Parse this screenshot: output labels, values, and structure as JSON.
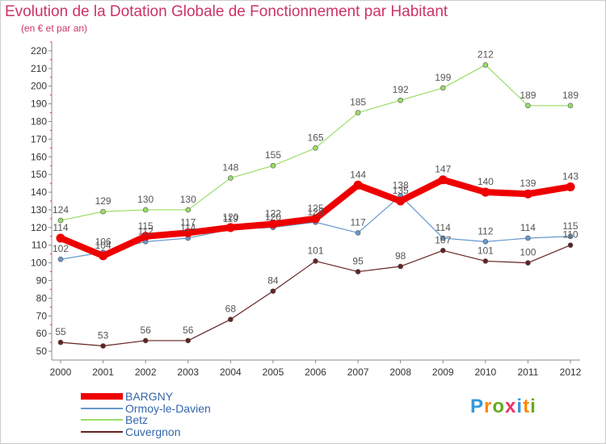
{
  "chart_data": {
    "type": "line",
    "title": "Evolution de la Dotation Globale de Fonctionnement par Habitant",
    "subtitle": "(en € et par an)",
    "categories": [
      "2000",
      "2001",
      "2002",
      "2003",
      "2004",
      "2005",
      "2006",
      "2007",
      "2008",
      "2009",
      "2010",
      "2011",
      "2012"
    ],
    "y_ticks": [
      50,
      60,
      70,
      80,
      90,
      100,
      110,
      120,
      130,
      140,
      150,
      160,
      170,
      180,
      190,
      200,
      210,
      220
    ],
    "ylim": [
      45,
      225
    ],
    "grid": false,
    "legend_position": "bottom-left",
    "series": [
      {
        "name": "BARGNY",
        "color": "#ee0000",
        "values": [
          114,
          104,
          115,
          117,
          120,
          122,
          125,
          144,
          135,
          147,
          140,
          139,
          143
        ],
        "labels": [
          "114",
          "104",
          "115",
          "117",
          "120",
          "122",
          "125",
          "144",
          "135",
          "147",
          "140",
          "139",
          "143"
        ]
      },
      {
        "name": "Ormoy-le-Davien",
        "color": "#6699cc",
        "values": [
          102,
          106,
          112,
          114,
          119,
          120,
          123,
          117,
          138,
          114,
          112,
          114,
          115
        ],
        "labels": [
          "102",
          "106",
          "112",
          "114",
          "119",
          "120",
          "123",
          "117",
          "138",
          "114",
          "112",
          "114",
          "115"
        ]
      },
      {
        "name": "Betz",
        "color": "#99dd66",
        "values": [
          124,
          129,
          130,
          130,
          148,
          155,
          165,
          185,
          192,
          199,
          212,
          189,
          189
        ],
        "labels": [
          "124",
          "129",
          "130",
          "130",
          "148",
          "155",
          "165",
          "185",
          "192",
          "199",
          "212",
          "189",
          "189"
        ]
      },
      {
        "name": "Cuvergnon",
        "color": "#662222",
        "values": [
          55,
          53,
          56,
          56,
          68,
          84,
          101,
          95,
          98,
          107,
          101,
          100,
          110
        ],
        "labels": [
          "55",
          "53",
          "56",
          "56",
          "68",
          "84",
          "101",
          "95",
          "98",
          "107",
          "101",
          "100",
          "110"
        ]
      }
    ]
  },
  "logo": {
    "text": "Proxiti"
  }
}
